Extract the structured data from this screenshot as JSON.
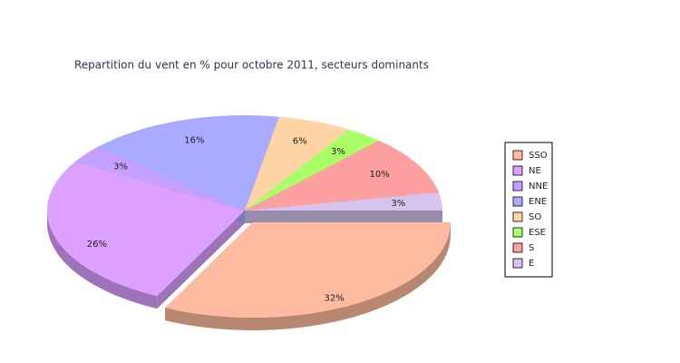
{
  "chart_data": {
    "type": "pie",
    "title": "Repartition du vent en % pour octobre 2011, secteurs dominants",
    "categories": [
      "SSO",
      "NE",
      "NNE",
      "ENE",
      "SO",
      "ESE",
      "S",
      "E"
    ],
    "values": [
      32,
      26,
      3,
      16,
      6,
      3,
      10,
      3
    ],
    "value_labels": [
      "32%",
      "26%",
      "3%",
      "16%",
      "6%",
      "3%",
      "10%",
      "3%"
    ],
    "colors": [
      "#ffbb9f",
      "#dca0ff",
      "#c4a0ff",
      "#aaaaff",
      "#ffd4a4",
      "#aaff66",
      "#ffa0a0",
      "#d6c4ee"
    ],
    "legend": "right"
  }
}
